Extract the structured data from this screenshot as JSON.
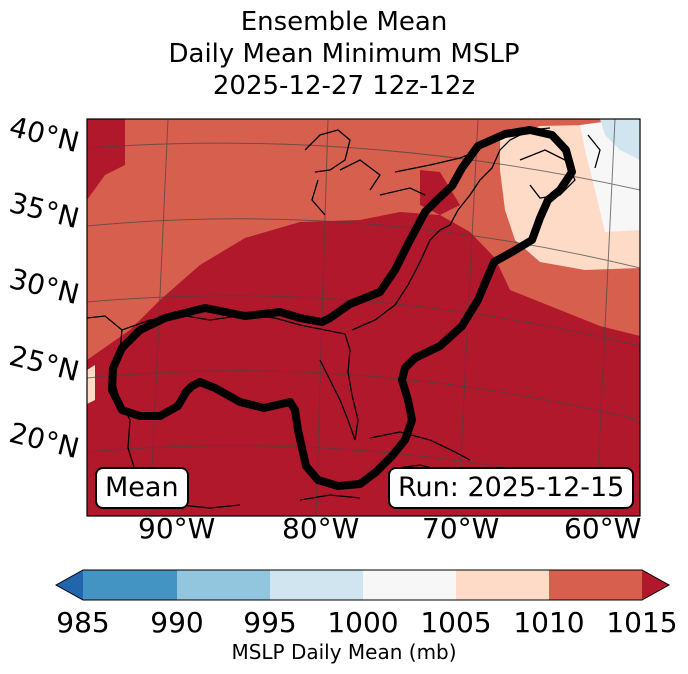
{
  "title": {
    "line1": "Ensemble Mean",
    "line2": "Daily Mean Minimum MSLP",
    "line3": "2025-12-27 12z-12z"
  },
  "lat_labels": [
    "40°N",
    "35°N",
    "30°N",
    "25°N",
    "20°N"
  ],
  "lon_labels": [
    "90°W",
    "80°W",
    "70°W",
    "60°W"
  ],
  "mode_label": "Mean",
  "run_label": "Run: 2025-12-15",
  "colorbar": {
    "ticks": [
      "985",
      "990",
      "995",
      "1000",
      "1005",
      "1010",
      "1015"
    ],
    "label": "MSLP Daily Mean (mb)",
    "colors": [
      "#2166ac",
      "#4393c3",
      "#92c5de",
      "#d1e5f0",
      "#f7f7f7",
      "#fddbc7",
      "#d6604d",
      "#b2182b"
    ]
  },
  "field_colors": {
    "band_1005_1010": "#fddbc7",
    "band_1010_1015": "#d6604d",
    "band_above_1015": "#b2182b",
    "band_1000_1005": "#f7f7f7",
    "band_995_1000": "#d1e5f0"
  }
}
